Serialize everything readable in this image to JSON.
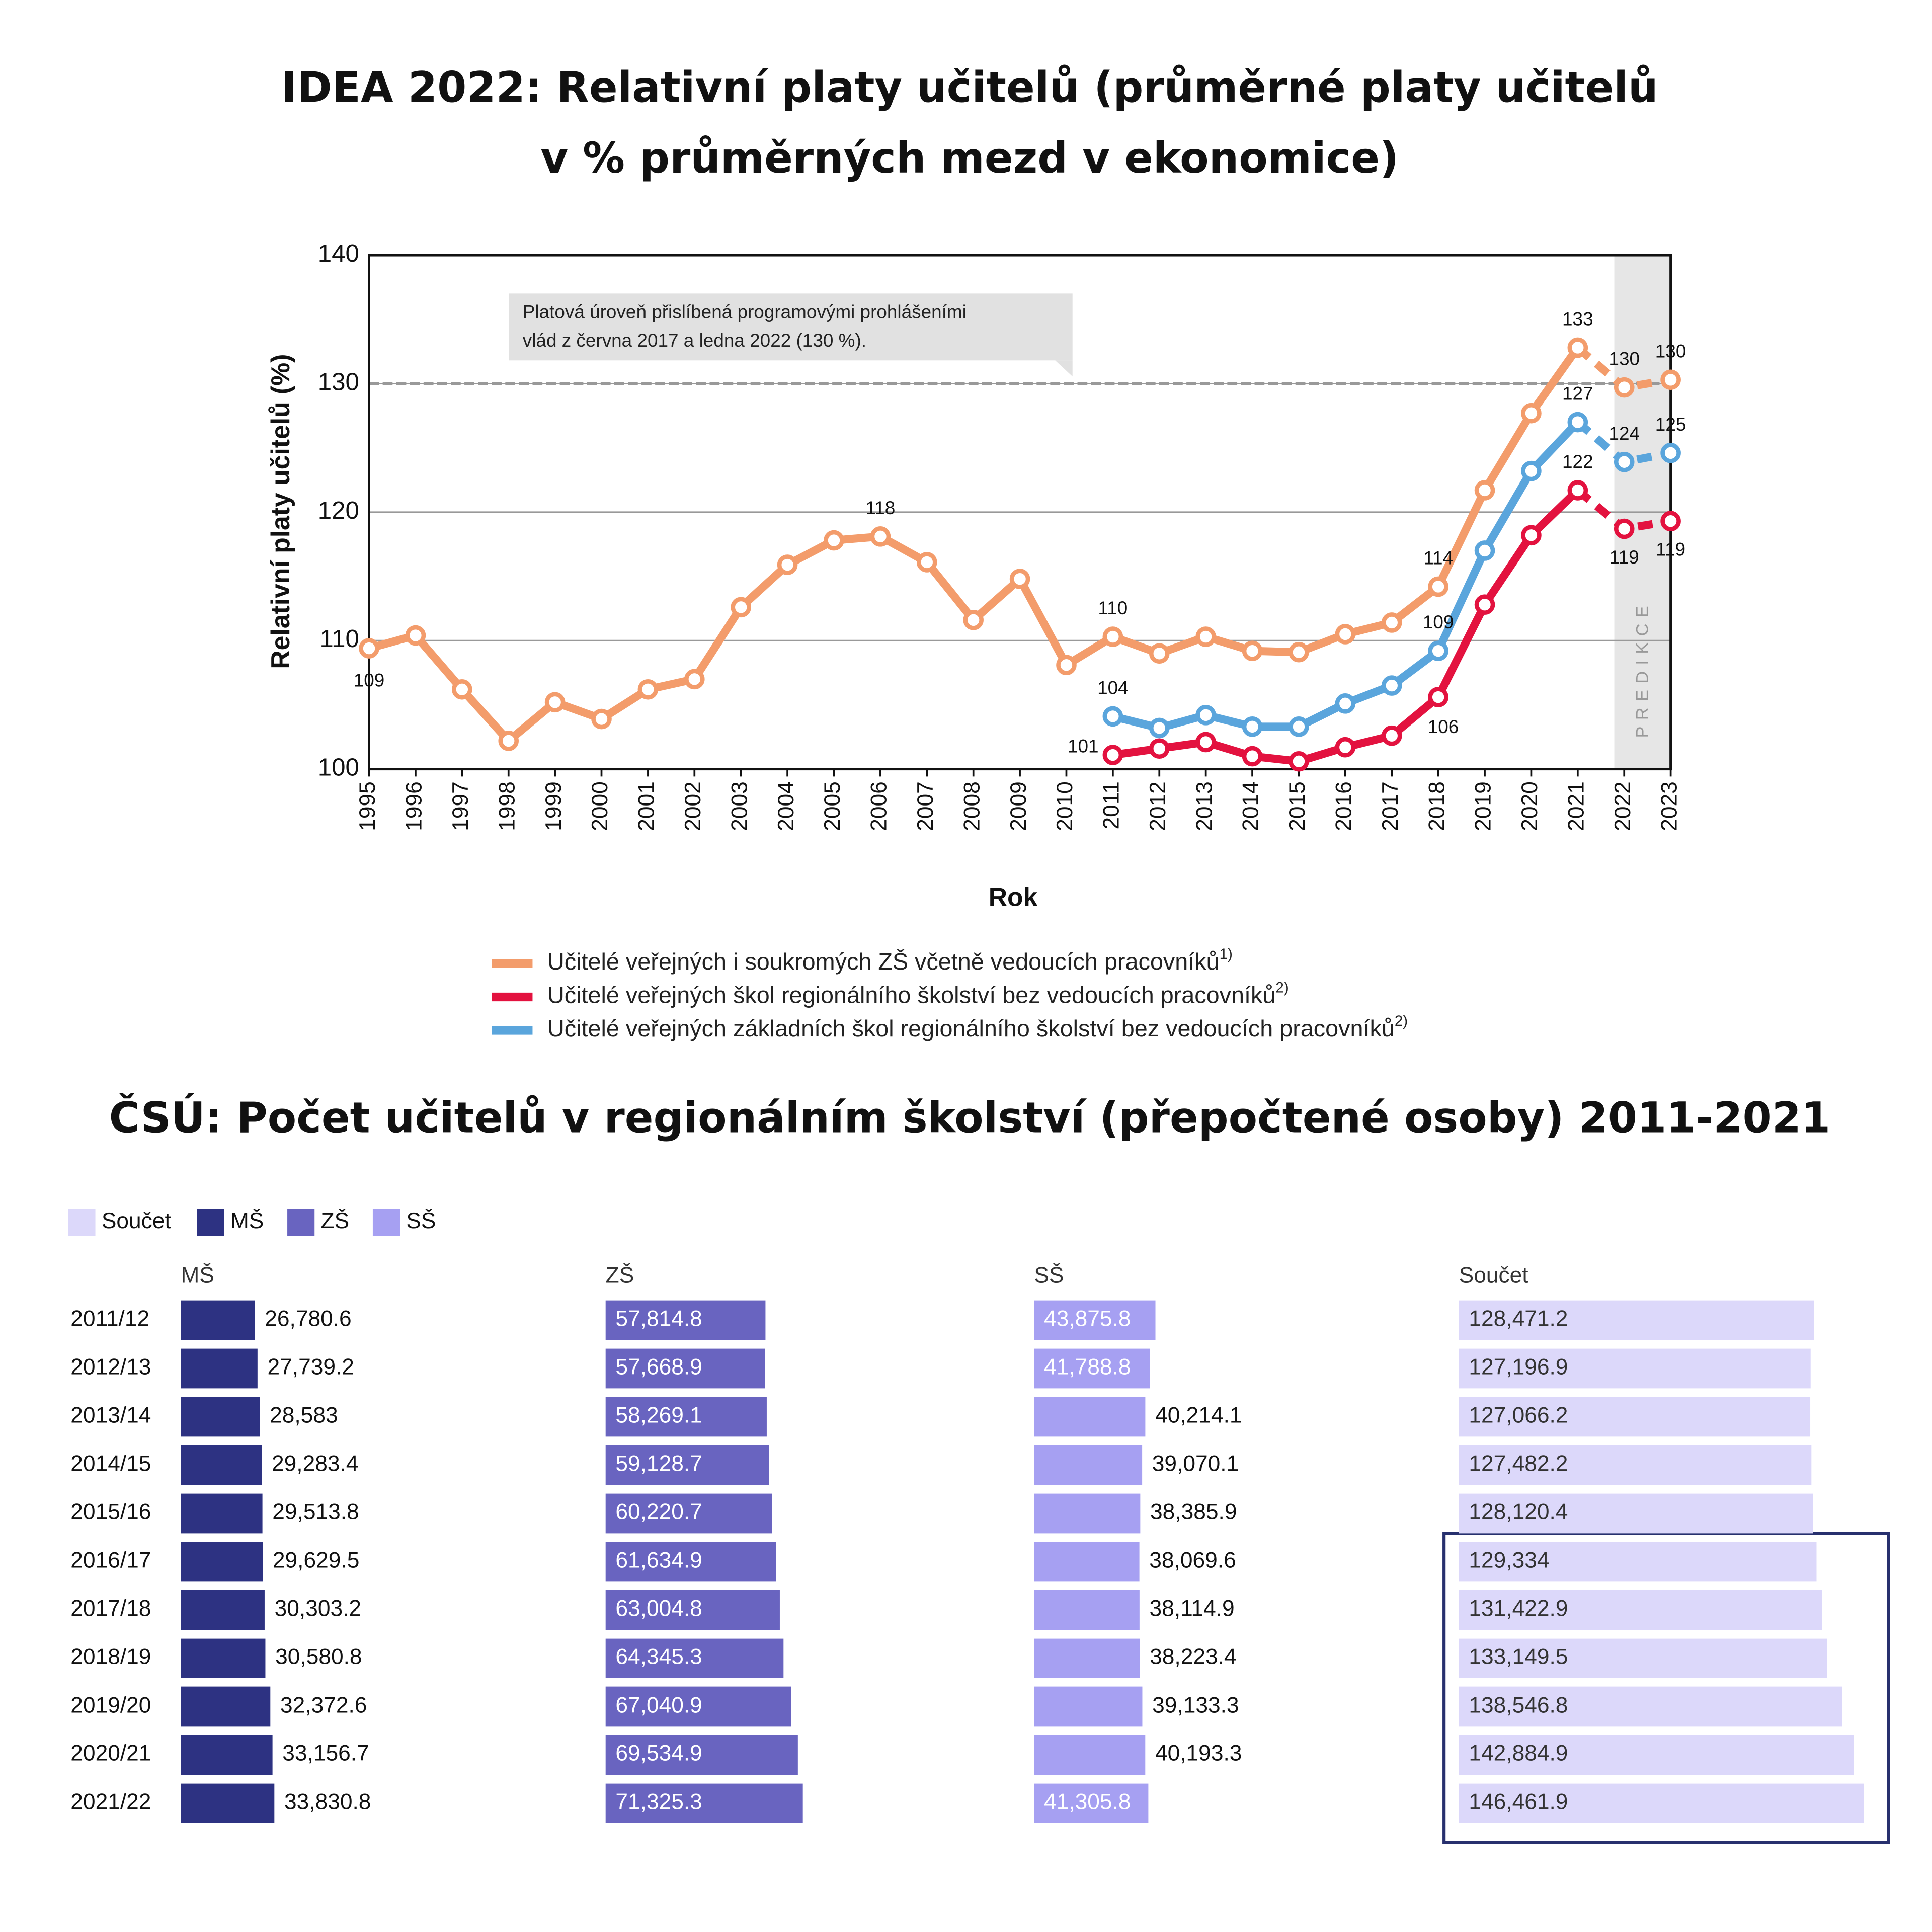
{
  "chart_data": [
    {
      "type": "line",
      "title": [
        "IDEA 2022: Relativní platy učitelů (průměrné platy učitelů",
        "v % průměrných mezd v ekonomice)"
      ],
      "ylabel": "Relativní platy učitelů (%)",
      "xlabel": "Rok",
      "x": [
        1995,
        1996,
        1997,
        1998,
        1999,
        2000,
        2001,
        2002,
        2003,
        2004,
        2005,
        2006,
        2007,
        2008,
        2009,
        2010,
        2011,
        2012,
        2013,
        2014,
        2015,
        2016,
        2017,
        2018,
        2019,
        2020,
        2021,
        2022,
        2023
      ],
      "xlim": [
        1995,
        2023
      ],
      "xticks": [
        1995,
        1996,
        1997,
        1998,
        1999,
        2000,
        2001,
        2002,
        2003,
        2004,
        2005,
        2006,
        2007,
        2008,
        2009,
        2010,
        2011,
        2012,
        2013,
        2014,
        2015,
        2016,
        2017,
        2018,
        2019,
        2020,
        2021,
        2022,
        2023
      ],
      "ylim": [
        100,
        140
      ],
      "yticks": [
        100,
        110,
        120,
        130,
        140
      ],
      "grid": true,
      "reference_line": {
        "value": 130,
        "label": [
          "Platová úroveň přislíbená programovými prohlášeními",
          "vlád z června 2017 a ledna 2022 (130 %)."
        ]
      },
      "prediction": {
        "label": "PREDIKCE",
        "from": 2022
      },
      "series": [
        {
          "name": "Učitelé veřejných i soukromých ZŠ včetně vedoucích pracovníků",
          "note": "1)",
          "color": "#f39c6b",
          "values": [
            109.4,
            110.4,
            106.2,
            102.2,
            105.2,
            103.9,
            106.2,
            107.0,
            112.6,
            115.9,
            117.8,
            118.1,
            116.1,
            111.6,
            114.8,
            108.1,
            110.3,
            109.0,
            110.3,
            109.2,
            109.1,
            110.5,
            111.4,
            114.2,
            121.7,
            127.7,
            132.8,
            129.7,
            130.3
          ],
          "value_labels": [
            "109",
            null,
            null,
            null,
            null,
            null,
            null,
            null,
            null,
            null,
            null,
            "118",
            null,
            null,
            null,
            null,
            "110",
            null,
            null,
            null,
            null,
            null,
            null,
            "114",
            null,
            null,
            "133",
            "130",
            "130"
          ]
        },
        {
          "name": "Učitelé veřejných škol regionálního školství bez vedoucích pracovníků",
          "note": "2)",
          "color": "#e3123f",
          "values": [
            null,
            null,
            null,
            null,
            null,
            null,
            null,
            null,
            null,
            null,
            null,
            null,
            null,
            null,
            null,
            null,
            101.1,
            101.6,
            102.1,
            101.0,
            100.6,
            101.7,
            102.6,
            105.6,
            112.8,
            118.2,
            121.7,
            118.7,
            119.3
          ],
          "value_labels": [
            null,
            null,
            null,
            null,
            null,
            null,
            null,
            null,
            null,
            null,
            null,
            null,
            null,
            null,
            null,
            null,
            "101",
            null,
            null,
            null,
            null,
            null,
            null,
            "106",
            null,
            null,
            "122",
            "119",
            "119"
          ]
        },
        {
          "name": "Učitelé veřejných základních škol regionálního školství bez vedoucích pracovníků",
          "note": "2)",
          "color": "#5aa5dc",
          "values": [
            null,
            null,
            null,
            null,
            null,
            null,
            null,
            null,
            null,
            null,
            null,
            null,
            null,
            null,
            null,
            null,
            104.1,
            103.2,
            104.2,
            103.3,
            103.3,
            105.1,
            106.5,
            109.2,
            117.0,
            123.2,
            127.0,
            123.9,
            124.6
          ],
          "value_labels": [
            null,
            null,
            null,
            null,
            null,
            null,
            null,
            null,
            null,
            null,
            null,
            null,
            null,
            null,
            null,
            null,
            "104",
            null,
            null,
            null,
            null,
            null,
            null,
            "109",
            null,
            null,
            "127",
            "124",
            "125"
          ]
        }
      ]
    },
    {
      "type": "bar",
      "title": "ČSÚ: Počet učitelů v regionálním školství (přepočtené osoby) 2011-2021",
      "categories": [
        "2011/12",
        "2012/13",
        "2013/14",
        "2014/15",
        "2015/16",
        "2016/17",
        "2017/18",
        "2018/19",
        "2019/20",
        "2020/21",
        "2021/22"
      ],
      "series": [
        {
          "name": "Součet",
          "color": "#dcd8fa",
          "values": [
            128471.2,
            127196.9,
            127066.2,
            127482.2,
            128120.4,
            129334,
            131422.9,
            133149.5,
            138546.8,
            142884.9,
            146461.9
          ],
          "value_labels": [
            "128,471.2",
            "127,196.9",
            "127,066.2",
            "127,482.2",
            "128,120.4",
            "129,334",
            "131,422.9",
            "133,149.5",
            "138,546.8",
            "142,884.9",
            "146,461.9"
          ]
        },
        {
          "name": "MŠ",
          "color": "#2d3282",
          "values": [
            26780.6,
            27739.2,
            28583,
            29283.4,
            29513.8,
            29629.5,
            30303.2,
            30580.8,
            32372.6,
            33156.7,
            33830.8
          ],
          "value_labels": [
            "26,780.6",
            "27,739.2",
            "28,583",
            "29,283.4",
            "29,513.8",
            "29,629.5",
            "30,303.2",
            "30,580.8",
            "32,372.6",
            "33,156.7",
            "33,830.8"
          ]
        },
        {
          "name": "ZŠ",
          "color": "#6964c0",
          "values": [
            57814.8,
            57668.9,
            58269.1,
            59128.7,
            60220.7,
            61634.9,
            63004.8,
            64345.3,
            67040.9,
            69534.9,
            71325.3
          ],
          "value_labels": [
            "57,814.8",
            "57,668.9",
            "58,269.1",
            "59,128.7",
            "60,220.7",
            "61,634.9",
            "63,004.8",
            "64,345.3",
            "67,040.9",
            "69,534.9",
            "71,325.3"
          ]
        },
        {
          "name": "SŠ",
          "color": "#a6a0f2",
          "values": [
            43875.8,
            41788.8,
            40214.1,
            39070.1,
            38385.9,
            38069.6,
            38114.9,
            38223.4,
            39133.3,
            40193.3,
            41305.8
          ],
          "value_labels": [
            "43,875.8",
            "41,788.8",
            "40,214.1",
            "39,070.1",
            "38,385.9",
            "38,069.6",
            "38,114.9",
            "38,223.4",
            "39,133.3",
            "40,193.3",
            "41,305.8"
          ]
        }
      ]
    }
  ]
}
